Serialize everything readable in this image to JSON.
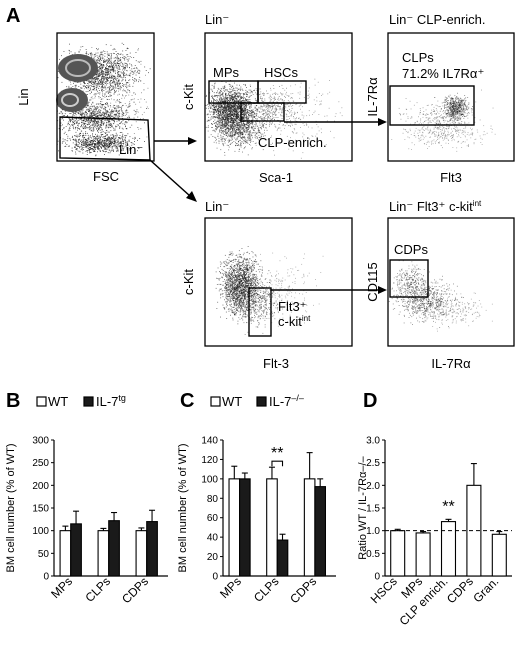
{
  "panel_letters": {
    "a": "A",
    "b": "B",
    "c": "C",
    "d": "D"
  },
  "flow": {
    "p1": {
      "x_label": "FSC",
      "y_label": "Lin",
      "gate": "Lin⁻"
    },
    "p2": {
      "title": "Lin⁻",
      "x_label": "Sca-1",
      "y_label": "c-Kit",
      "gate_mps": "MPs",
      "gate_hscs": "HSCs",
      "gate_clp": "CLP-enrich."
    },
    "p3": {
      "title": "Lin⁻ CLP-enrich.",
      "x_label": "Flt3",
      "y_label": "IL-7Rα",
      "gate_label": "CLPs",
      "gate_pct": "71.2% IL7Rα⁺"
    },
    "p4": {
      "title": "Lin⁻",
      "x_label": "Flt-3",
      "y_label": "c-Kit",
      "gate_line1": "Flt3⁺",
      "gate_line2_base": "c-kit",
      "gate_line2_sup": "int"
    },
    "p5": {
      "title_base": "Lin⁻ Flt3⁺ c-kit",
      "title_sup": "int",
      "x_label": "IL-7Rα",
      "y_label": "CD115",
      "gate_label": "CDPs"
    }
  },
  "legend_b": {
    "wt": "WT",
    "ko_base": "IL-7",
    "ko_sup": "tg"
  },
  "legend_c": {
    "wt": "WT",
    "ko_base": "IL-7",
    "ko_sup": "–/–"
  },
  "colors": {
    "wt": "#ffffff",
    "ko": "#1a1a1a",
    "dots": "#000000"
  },
  "chart_data": [
    {
      "panel": "B",
      "type": "bar",
      "ylabel": "BM cell number (% of WT)",
      "ylim": [
        0,
        300
      ],
      "yticks": [
        "0",
        "50",
        "100",
        "150",
        "200",
        "250",
        "300"
      ],
      "categories": [
        "MPs",
        "CLPs",
        "CDPs"
      ],
      "series": [
        {
          "name": "WT",
          "values": [
            100,
            100,
            100
          ],
          "errors": [
            10,
            5,
            6
          ]
        },
        {
          "name": "IL-7tg",
          "values": [
            115,
            122,
            120
          ],
          "errors": [
            28,
            18,
            25
          ]
        }
      ]
    },
    {
      "panel": "C",
      "type": "bar",
      "ylabel": "BM cell number (% of WT)",
      "ylim": [
        0,
        140
      ],
      "yticks": [
        "0",
        "20",
        "40",
        "60",
        "80",
        "100",
        "120",
        "140"
      ],
      "categories": [
        "MPs",
        "CLPs",
        "CDPs"
      ],
      "series": [
        {
          "name": "WT",
          "values": [
            100,
            100,
            100
          ],
          "errors": [
            13,
            12,
            27
          ]
        },
        {
          "name": "IL-7–/–",
          "values": [
            100,
            37,
            92
          ],
          "errors": [
            6,
            6,
            8
          ]
        }
      ],
      "annotation": "**"
    },
    {
      "panel": "D",
      "type": "bar",
      "ylabel": "Ratio WT / IL-7Rα–/–",
      "ylim": [
        0,
        3.0
      ],
      "yticks": [
        "0",
        "0.5",
        "1.0",
        "1.5",
        "2.0",
        "2.5",
        "3.0"
      ],
      "categories": [
        "HSCs",
        "MPs",
        "CLP enrich.",
        "CDPs",
        "Gran."
      ],
      "values": [
        1.0,
        0.95,
        1.2,
        2.0,
        0.92
      ],
      "errors": [
        0.03,
        0.03,
        0.05,
        0.48,
        0.06
      ],
      "reference_line": 1.0,
      "annotation": "**"
    }
  ]
}
